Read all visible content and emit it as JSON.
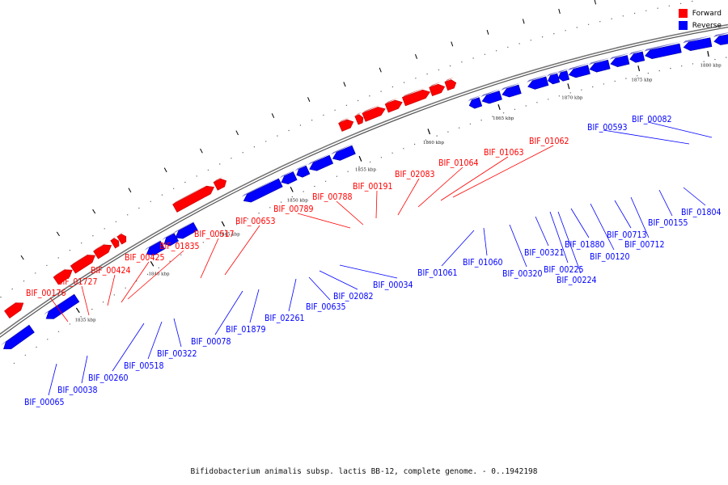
{
  "caption": "Bifidobacterium animalis subsp. lactis BB-12, complete genome. - 0..1942198",
  "legend": [
    {
      "label": "Forward",
      "color": "#ff0000"
    },
    {
      "label": "Reverse",
      "color": "#0000ff"
    }
  ],
  "colors": {
    "forward": "#ff0000",
    "reverse": "#0000ff",
    "forward_leader": "#c00000",
    "reverse_leader": "#0000a0",
    "backbone": "#888888"
  },
  "scale_labels": [
    "1835 kbp",
    "1840 kbp",
    "1845 kbp",
    "1850 kbp",
    "1855 kbp",
    "1860 kbp",
    "1865 kbp",
    "1870 kbp",
    "1875 kbp",
    "1880 kbp"
  ],
  "forward_labels": [
    "BIF_00176",
    "BIF_01727",
    "BIF_00424",
    "BIF_00425",
    "BIF_01835",
    "BIF_00517",
    "BIF_00653",
    "BIF_00789",
    "BIF_00788",
    "BIF_00191",
    "BIF_02083",
    "BIF_01064",
    "BIF_01063",
    "BIF_01062"
  ],
  "reverse_labels": [
    "BIF_00065",
    "BIF_00038",
    "BIF_00260",
    "BIF_00518",
    "BIF_00322",
    "BIF_00078",
    "BIF_01879",
    "BIF_02261",
    "BIF_00635",
    "BIF_02082",
    "BIF_00034",
    "BIF_01061",
    "BIF_01060",
    "BIF_00320",
    "BIF_00321",
    "BIF_00225",
    "BIF_00224",
    "BIF_01880",
    "BIF_00120",
    "BIF_00713",
    "BIF_00712",
    "BIF_00155",
    "BIF_01804",
    "BIF_00593",
    "BIF_00082"
  ]
}
